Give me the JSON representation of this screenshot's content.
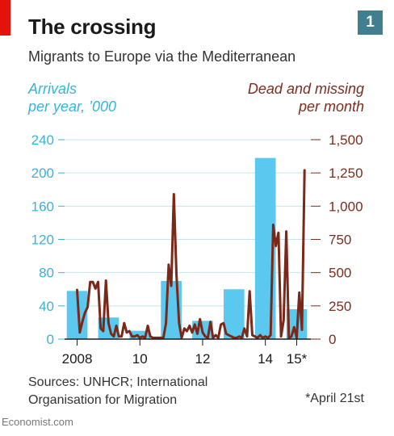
{
  "header": {
    "title": "The crossing",
    "subtitle": "Migrants to Europe via the Mediterranean",
    "badge": "1"
  },
  "axis_titles": {
    "left_line1": "Arrivals",
    "left_line2": "per year, ’000",
    "right_line1": "Dead and missing",
    "right_line2": "per month"
  },
  "footer": {
    "source_line1": "Sources: UNHCR; International",
    "source_line2": "Organisation for Migration",
    "footnote": "*April 21st",
    "brand": "Economist.com"
  },
  "colors": {
    "bars": "#5bc8f0",
    "line": "#7a2818",
    "left_axis": "#38b3d9",
    "right_axis": "#7a2e1e",
    "grid": "#bfe6f4"
  },
  "chart_data": {
    "type": "bar+line",
    "title": "The crossing",
    "subtitle": "Migrants to Europe via the Mediterranean",
    "x_ticks": [
      {
        "label": "2008",
        "t": 2008.0
      },
      {
        "label": "10",
        "t": 2010.0
      },
      {
        "label": "12",
        "t": 2012.0
      },
      {
        "label": "14",
        "t": 2014.0
      },
      {
        "label": "15*",
        "t": 2015.0
      }
    ],
    "x_range": [
      2007.6,
      2015.45
    ],
    "y_left": {
      "label": "Arrivals per year, ’000",
      "range": [
        0,
        240
      ],
      "ticks": [
        0,
        40,
        80,
        120,
        160,
        200,
        240
      ]
    },
    "y_right": {
      "label": "Dead and missing per month",
      "range": [
        0,
        1500
      ],
      "ticks": [
        "0",
        "250",
        "500",
        "750",
        "1,000",
        "1,250",
        "1,500"
      ],
      "tick_values": [
        0,
        250,
        500,
        750,
        1000,
        1250,
        1500
      ]
    },
    "series": [
      {
        "name": "Arrivals",
        "type": "bar",
        "axis": "left",
        "categories": [
          "2008",
          "2009",
          "2010",
          "2011",
          "2012",
          "2013",
          "2014",
          "2015"
        ],
        "values": [
          58,
          26,
          10,
          70,
          22,
          60,
          218,
          36
        ]
      },
      {
        "name": "Dead and missing",
        "type": "line",
        "axis": "right",
        "x": [
          2008.0,
          2008.083,
          2008.167,
          2008.25,
          2008.333,
          2008.417,
          2008.5,
          2008.583,
          2008.667,
          2008.75,
          2008.833,
          2008.917,
          2009.0,
          2009.083,
          2009.167,
          2009.25,
          2009.333,
          2009.417,
          2009.5,
          2009.583,
          2009.667,
          2009.75,
          2009.833,
          2009.917,
          2010.0,
          2010.083,
          2010.167,
          2010.25,
          2010.333,
          2010.417,
          2010.5,
          2010.583,
          2010.667,
          2010.75,
          2010.833,
          2010.917,
          2011.0,
          2011.083,
          2011.167,
          2011.25,
          2011.333,
          2011.417,
          2011.5,
          2011.583,
          2011.667,
          2011.75,
          2011.833,
          2011.917,
          2012.0,
          2012.083,
          2012.167,
          2012.25,
          2012.333,
          2012.417,
          2012.5,
          2012.583,
          2012.667,
          2012.75,
          2012.833,
          2012.917,
          2013.0,
          2013.083,
          2013.167,
          2013.25,
          2013.333,
          2013.417,
          2013.5,
          2013.583,
          2013.667,
          2013.75,
          2013.833,
          2013.917,
          2014.0,
          2014.083,
          2014.167,
          2014.25,
          2014.333,
          2014.417,
          2014.5,
          2014.583,
          2014.667,
          2014.75,
          2014.833,
          2014.917,
          2015.0,
          2015.083,
          2015.167,
          2015.25
        ],
        "values": [
          370,
          50,
          130,
          200,
          240,
          430,
          430,
          380,
          430,
          80,
          60,
          440,
          120,
          40,
          20,
          100,
          20,
          20,
          120,
          50,
          60,
          20,
          20,
          30,
          10,
          20,
          10,
          100,
          20,
          10,
          10,
          10,
          10,
          10,
          120,
          560,
          400,
          1090,
          480,
          120,
          10,
          80,
          60,
          100,
          50,
          110,
          40,
          150,
          50,
          20,
          10,
          130,
          10,
          30,
          10,
          110,
          120,
          40,
          30,
          20,
          10,
          10,
          20,
          10,
          80,
          20,
          360,
          30,
          20,
          10,
          30,
          10,
          20,
          10,
          30,
          860,
          700,
          800,
          20,
          140,
          810,
          10,
          20,
          90,
          10,
          350,
          70,
          1270
        ]
      }
    ],
    "grid": true,
    "legend": "none"
  }
}
